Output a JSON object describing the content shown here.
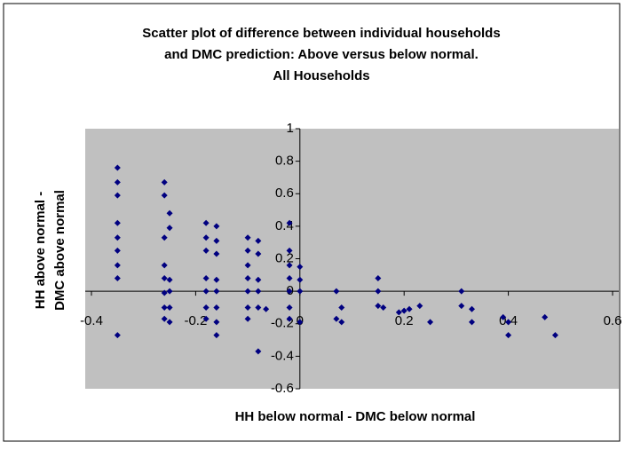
{
  "chart_data": {
    "type": "scatter",
    "title": [
      "Scatter plot of difference between individual households",
      "and DMC prediction: Above versus below normal.",
      "All Households"
    ],
    "x_label": "HH below normal - DMC below normal",
    "y_label": [
      "HH above normal -",
      "DMC above normal"
    ],
    "xlim": [
      -0.4,
      0.6
    ],
    "xticks": [
      -0.4,
      -0.2,
      0,
      0.2,
      0.4,
      0.6
    ],
    "ylim": [
      -0.6,
      1
    ],
    "yticks": [
      -0.6,
      -0.4,
      -0.2,
      0,
      0.2,
      0.4,
      0.6,
      0.8,
      1
    ],
    "color": "#000080",
    "x": [
      -0.35,
      -0.35,
      -0.35,
      -0.35,
      -0.35,
      -0.35,
      -0.35,
      -0.35,
      -0.35,
      -0.26,
      -0.26,
      -0.26,
      -0.26,
      -0.26,
      -0.26,
      -0.26,
      -0.26,
      -0.25,
      -0.25,
      -0.25,
      -0.25,
      -0.25,
      -0.25,
      -0.18,
      -0.18,
      -0.18,
      -0.18,
      -0.18,
      -0.18,
      -0.18,
      -0.16,
      -0.16,
      -0.16,
      -0.16,
      -0.16,
      -0.16,
      -0.16,
      -0.16,
      -0.1,
      -0.1,
      -0.1,
      -0.1,
      -0.1,
      -0.1,
      -0.1,
      -0.08,
      -0.08,
      -0.08,
      -0.08,
      -0.08,
      -0.08,
      -0.065,
      -0.02,
      -0.02,
      -0.02,
      -0.02,
      -0.02,
      -0.02,
      -0.02,
      0,
      0,
      0,
      0,
      0.07,
      0.07,
      0.08,
      0.08,
      0.15,
      0.15,
      0.15,
      0.16,
      0.19,
      0.2,
      0.21,
      0.23,
      0.25,
      0.31,
      0.31,
      0.33,
      0.33,
      0.39,
      0.4,
      0.4,
      0.47,
      0.49
    ],
    "y": [
      0.76,
      0.67,
      0.59,
      0.42,
      0.33,
      0.25,
      0.16,
      0.08,
      -0.27,
      0.67,
      0.59,
      0.33,
      0.16,
      0.08,
      -0.01,
      -0.1,
      -0.17,
      0.48,
      0.39,
      0.07,
      0,
      -0.1,
      -0.19,
      0.42,
      0.33,
      0.25,
      0.08,
      0,
      -0.1,
      -0.17,
      0.4,
      0.31,
      0.23,
      0.07,
      0,
      -0.1,
      -0.19,
      -0.27,
      0.33,
      0.25,
      0.16,
      0.08,
      0,
      -0.1,
      -0.17,
      0.31,
      0.23,
      0.07,
      0,
      -0.1,
      -0.37,
      -0.11,
      0.42,
      0.25,
      0.16,
      0.08,
      0,
      -0.1,
      -0.17,
      0.15,
      0.07,
      0,
      -0.19,
      0,
      -0.17,
      -0.1,
      -0.19,
      0.08,
      0,
      -0.09,
      -0.1,
      -0.13,
      -0.12,
      -0.11,
      -0.09,
      -0.19,
      0,
      -0.09,
      -0.11,
      -0.19,
      -0.16,
      -0.19,
      -0.27,
      -0.16,
      -0.27
    ]
  }
}
